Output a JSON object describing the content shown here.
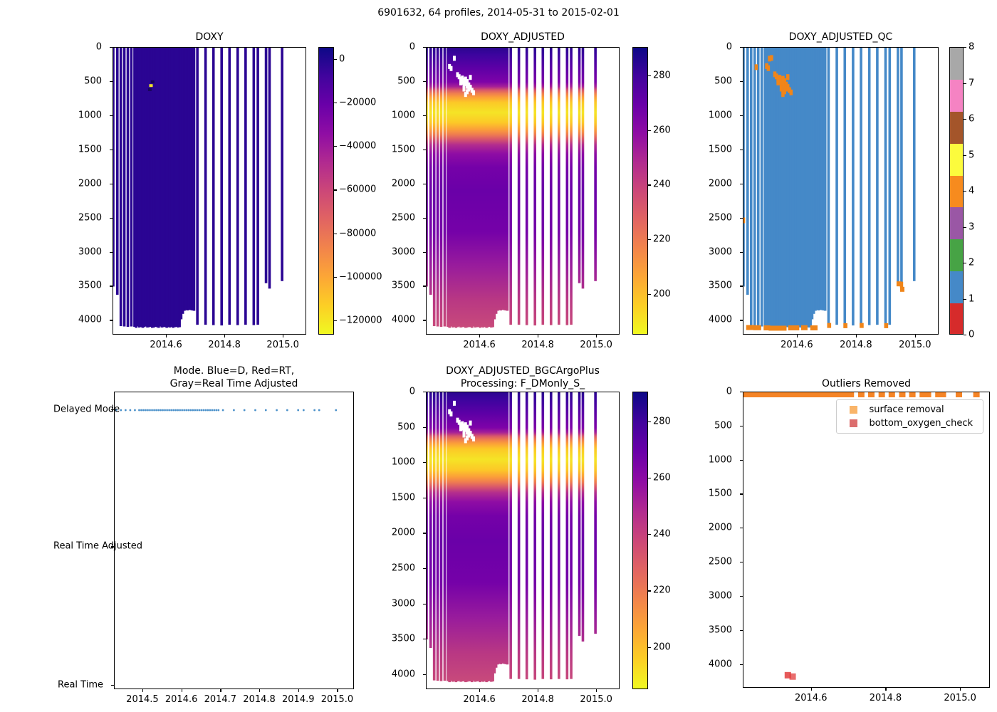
{
  "suptitle": "6901632, 64 profiles, 2014-05-31 to 2015-02-01",
  "panels": {
    "doxy": {
      "title": "DOXY"
    },
    "adjusted": {
      "title": "DOXY_ADJUSTED"
    },
    "qc": {
      "title": "DOXY_ADJUSTED_QC"
    },
    "mode": {
      "title_line1": "Mode. Blue=D, Red=RT,",
      "title_line2": "Gray=Real Time Adjusted"
    },
    "bgc": {
      "title_line1": "DOXY_ADJUSTED_BGCArgoPlus",
      "title_line2": "Processing: F_DMonly_S_"
    },
    "outliers": {
      "title": "Outliers Removed",
      "legend": [
        {
          "label": "surface removal",
          "color": "#f9b469"
        },
        {
          "label": "bottom_oxygen_check",
          "color": "#dc6e6e"
        }
      ]
    }
  },
  "axes": {
    "heat_x": {
      "range": [
        2014.417,
        2015.08
      ],
      "ticks": [
        2014.6,
        2014.8,
        2015.0
      ],
      "labels": [
        "2014.6",
        "2014.8",
        "2015.0"
      ]
    },
    "depth_y": {
      "range": [
        0,
        4215
      ],
      "ticks": [
        0,
        500,
        1000,
        1500,
        2000,
        2500,
        3000,
        3500,
        4000
      ]
    },
    "mode_x": {
      "range": [
        2014.427,
        2015.043
      ],
      "ticks": [
        2014.5,
        2014.6,
        2014.7,
        2014.8,
        2014.9,
        2015.0
      ],
      "labels": [
        "2014.5",
        "2014.6",
        "2014.7",
        "2014.8",
        "2014.9",
        "2015.0"
      ]
    },
    "mode_y": {
      "categories": [
        "Delayed Mode",
        "Real Time Adjusted",
        "Real Time"
      ],
      "fracs": [
        0.06,
        0.52,
        0.985
      ]
    },
    "out_y": {
      "range": [
        0,
        4350
      ],
      "ticks": [
        0,
        500,
        1000,
        1500,
        2000,
        2500,
        3000,
        3500,
        4000
      ]
    }
  },
  "colorbars": {
    "doxy": {
      "range": [
        5500,
        -126500
      ],
      "ticks": [
        0,
        -20000,
        -40000,
        -60000,
        -80000,
        -100000,
        -120000
      ],
      "labels": [
        "0",
        "−20000",
        "−40000",
        "−60000",
        "−80000",
        "−100000",
        "−120000"
      ],
      "cmap": "plasma"
    },
    "adjusted": {
      "range": [
        290.5,
        185
      ],
      "ticks": [
        280,
        260,
        240,
        220,
        200
      ],
      "labels": [
        "280",
        "260",
        "240",
        "220",
        "200"
      ],
      "cmap": "plasma"
    },
    "qc": {
      "range": [
        8,
        0
      ],
      "ticks": [
        8,
        7,
        6,
        5,
        4,
        3,
        2,
        1,
        0
      ],
      "labels": [
        "8",
        "7",
        "6",
        "5",
        "4",
        "3",
        "2",
        "1",
        "0"
      ],
      "band_colors_top_to_bottom": [
        "#a8a8a8",
        "#f583c3",
        "#a4552a",
        "#fcfb3d",
        "#f78b1e",
        "#9a57a5",
        "#47a345",
        "#4589c8",
        "#d62b2b"
      ]
    }
  },
  "colors": {
    "doxy_fill": "#2a0593",
    "qc_fill": "#4589c8",
    "qc_flag": "#f08519",
    "mode_dot": "#4a90c9",
    "band_orange": "#f58426",
    "red_mark": "#e23d3d",
    "plasma": [
      [
        0,
        "#0d0887"
      ],
      [
        0.1,
        "#41049d"
      ],
      [
        0.2,
        "#6a00a8"
      ],
      [
        0.3,
        "#8f0da4"
      ],
      [
        0.4,
        "#b12a90"
      ],
      [
        0.5,
        "#cc4778"
      ],
      [
        0.6,
        "#e16462"
      ],
      [
        0.7,
        "#f2844b"
      ],
      [
        0.8,
        "#fca636"
      ],
      [
        0.9,
        "#fcce25"
      ],
      [
        1,
        "#f0f921"
      ]
    ],
    "depth_gradient": [
      [
        0,
        "#2b0690"
      ],
      [
        0.024,
        "#3c049e"
      ],
      [
        0.071,
        "#5d00a6"
      ],
      [
        0.119,
        "#7e03a8"
      ],
      [
        0.135,
        "#a62098"
      ],
      [
        0.147,
        "#d8576b"
      ],
      [
        0.159,
        "#ef7e4f"
      ],
      [
        0.171,
        "#fb9d3a"
      ],
      [
        0.19,
        "#fcc827"
      ],
      [
        0.225,
        "#f5e426"
      ],
      [
        0.261,
        "#fcc827"
      ],
      [
        0.285,
        "#fb9d3a"
      ],
      [
        0.301,
        "#ef7e4f"
      ],
      [
        0.318,
        "#d8576b"
      ],
      [
        0.337,
        "#b42e8d"
      ],
      [
        0.368,
        "#8f0da4"
      ],
      [
        0.415,
        "#7501a8"
      ],
      [
        0.498,
        "#6a00a8"
      ],
      [
        0.64,
        "#7501a8"
      ],
      [
        0.759,
        "#991c9c"
      ],
      [
        0.878,
        "#b93883"
      ],
      [
        0.973,
        "#c84a7b"
      ],
      [
        1,
        "#ca4c79"
      ]
    ]
  },
  "chart_data": {
    "type": "heatmap",
    "description": "Argo float 6901632 dissolved-oxygen section plots: profile times (decimal year) vs depth (m)",
    "profiles": {
      "times": [
        2014.417,
        2014.431,
        2014.443,
        2014.455,
        2014.467,
        2014.479,
        2014.49,
        2014.4955,
        2014.501,
        2014.5065,
        2014.512,
        2014.5175,
        2014.523,
        2014.5285,
        2014.534,
        2014.5395,
        2014.545,
        2014.5505,
        2014.556,
        2014.5615,
        2014.567,
        2014.5725,
        2014.578,
        2014.5835,
        2014.589,
        2014.5945,
        2014.6,
        2014.6055,
        2014.611,
        2014.6165,
        2014.622,
        2014.6275,
        2014.633,
        2014.6385,
        2014.644,
        2014.6495,
        2014.655,
        2014.6605,
        2014.666,
        2014.6715,
        2014.677,
        2014.6825,
        2014.688,
        2014.6935,
        2014.705,
        2014.733,
        2014.76,
        2014.788,
        2014.815,
        2014.843,
        2014.87,
        2014.898,
        2014.912,
        2014.94,
        2014.952,
        2014.995
      ],
      "max_depth_m": [
        3500,
        3620,
        4080,
        4085,
        4090,
        4085,
        4090,
        4105,
        4085,
        4100,
        4090,
        4105,
        4095,
        4085,
        4100,
        4095,
        4090,
        4105,
        4100,
        4090,
        4095,
        4105,
        4085,
        4100,
        4095,
        4090,
        4105,
        4095,
        4100,
        4090,
        4105,
        4095,
        4090,
        4100,
        4095,
        3980,
        3900,
        3855,
        3845,
        3850,
        3840,
        3845,
        3850,
        3855,
        4060,
        4060,
        4065,
        4070,
        4060,
        4065,
        4060,
        4065,
        4060,
        3450,
        3530,
        3420
      ]
    },
    "mode_series": {
      "category": "Delayed Mode",
      "extra_times": [
        2015.042
      ]
    },
    "surface_removal": {
      "continuous_from": 2014.417,
      "continuous_until": 2014.6955,
      "dash_times": [
        2014.705,
        2014.733,
        2014.76,
        2014.788,
        2014.815,
        2014.843,
        2014.87,
        2014.898,
        2014.912,
        2014.94,
        2014.952,
        2014.995,
        2015.042,
        2015.085
      ],
      "depth_m": 30
    },
    "bottom_oxygen_check": [
      {
        "t": 2014.536,
        "depth_m": 4160
      },
      {
        "t": 2014.549,
        "depth_m": 4180
      }
    ],
    "nan_specks": [
      [
        2014.5285,
        420
      ],
      [
        2014.534,
        455
      ],
      [
        2014.5395,
        440
      ],
      [
        2014.5395,
        500
      ],
      [
        2014.545,
        470
      ],
      [
        2014.545,
        530
      ],
      [
        2014.5505,
        455
      ],
      [
        2014.5505,
        520
      ],
      [
        2014.556,
        490
      ],
      [
        2014.556,
        560
      ],
      [
        2014.5615,
        540
      ],
      [
        2014.5615,
        600
      ],
      [
        2014.567,
        575
      ],
      [
        2014.5725,
        620
      ],
      [
        2014.578,
        655
      ],
      [
        2014.523,
        390
      ],
      [
        2014.512,
        150
      ],
      [
        2014.4955,
        270
      ],
      [
        2014.501,
        300
      ],
      [
        2014.567,
        430
      ],
      [
        2014.556,
        640
      ],
      [
        2014.5505,
        680
      ],
      [
        2014.545,
        600
      ],
      [
        2014.534,
        510
      ]
    ],
    "qc_extra_specks": [
      [
        2014.46,
        285
      ],
      [
        2014.505,
        160
      ],
      [
        2014.417,
        2530
      ],
      [
        2014.952,
        3470
      ]
    ],
    "qc_bottom_segments": [
      [
        2014.431,
        2014.449,
        4095
      ],
      [
        2014.455,
        2014.472,
        4098
      ],
      [
        2014.49,
        2014.503,
        4100
      ],
      [
        2014.507,
        2014.558,
        4105
      ],
      [
        2014.573,
        2014.601,
        4100
      ],
      [
        2014.617,
        2014.629,
        4098
      ],
      [
        2014.648,
        2014.663,
        4100
      ],
      [
        2014.705,
        2014.709,
        4065
      ],
      [
        2014.76,
        2014.764,
        4068
      ],
      [
        2014.815,
        2014.819,
        4065
      ],
      [
        2014.898,
        2014.902,
        4068
      ],
      [
        2014.94,
        2014.945,
        3455
      ],
      [
        2014.952,
        2014.957,
        3535
      ]
    ],
    "doxy_specks": [
      [
        2014.545,
        555,
        "#f0e42a"
      ],
      [
        2014.5505,
        500,
        "#19045c"
      ],
      [
        2014.541,
        615,
        "#19045c"
      ]
    ]
  }
}
